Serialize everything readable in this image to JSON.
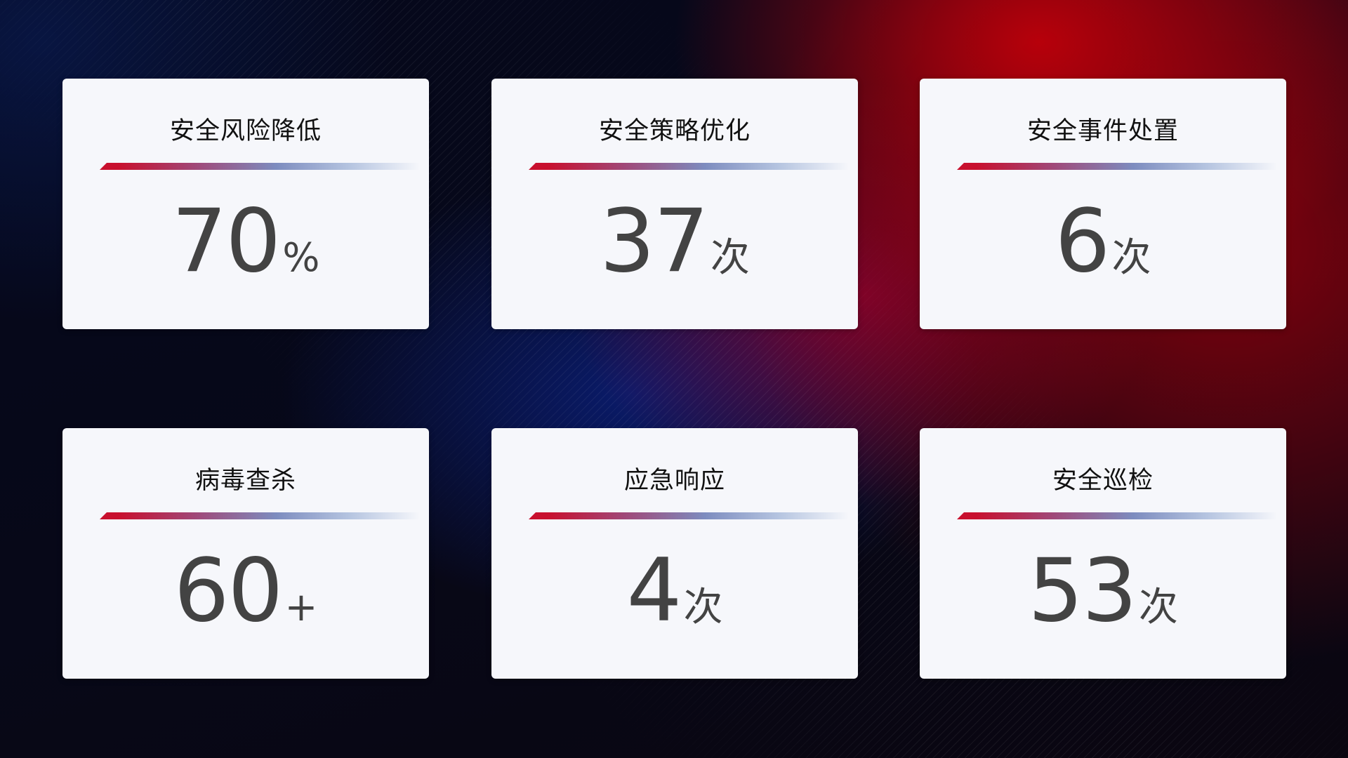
{
  "cards": [
    {
      "title": "安全风险降低",
      "value": "70",
      "unit": "%"
    },
    {
      "title": "安全策略优化",
      "value": "37",
      "unit": "次"
    },
    {
      "title": "安全事件处置",
      "value": "6",
      "unit": "次"
    },
    {
      "title": "病毒查杀",
      "value": "60",
      "unit": "+"
    },
    {
      "title": "应急响应",
      "value": "4",
      "unit": "次"
    },
    {
      "title": "安全巡检",
      "value": "53",
      "unit": "次"
    }
  ],
  "colors": {
    "accent_red": "#c8102e",
    "accent_blue": "#7d8cbf",
    "card_bg": "#f6f7fb",
    "value_text": "#434343"
  }
}
